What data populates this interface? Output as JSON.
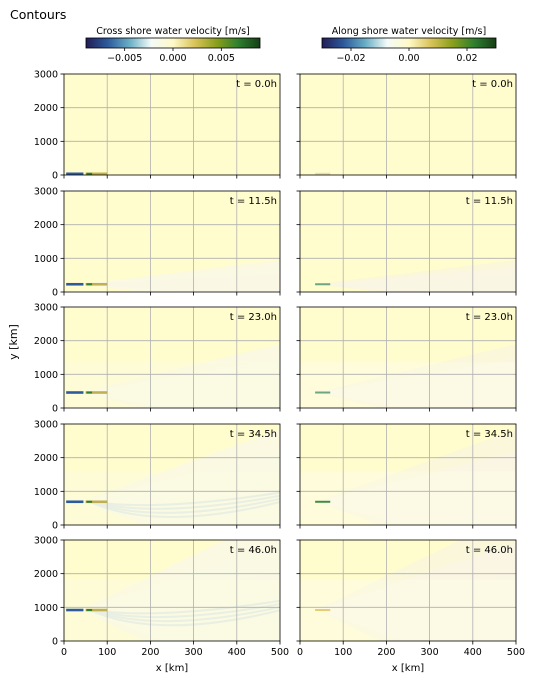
{
  "figure_title": "Contours",
  "chart_data": {
    "type": "heatmap",
    "grid": true,
    "xlim": [
      0,
      500
    ],
    "ylim": [
      0,
      3000
    ],
    "x_ticks": [
      0,
      100,
      200,
      300,
      400,
      500
    ],
    "y_ticks": [
      0,
      1000,
      2000,
      3000
    ],
    "xlabel": "x [km]",
    "ylabel": "y [km]",
    "colorbars": [
      {
        "label": "Cross shore water velocity [m/s]",
        "range": [
          -0.009,
          0.009
        ],
        "ticks": [
          -0.005,
          0.0,
          0.005
        ],
        "tick_labels": [
          "−0.005",
          "0.000",
          "0.005"
        ],
        "colors": [
          "#221d55",
          "#2d5a9c",
          "#6aaec6",
          "#f4fbf8",
          "#fff9c8",
          "#d9c35a",
          "#8a9f1c",
          "#2e7f2e",
          "#163d16"
        ]
      },
      {
        "label": "Along shore water velocity [m/s]",
        "range": [
          -0.03,
          0.03
        ],
        "ticks": [
          -0.02,
          0.0,
          0.02
        ],
        "tick_labels": [
          "−0.02",
          "0.00",
          "0.02"
        ],
        "colors": [
          "#221d55",
          "#2d5a9c",
          "#6aaec6",
          "#f4fbf8",
          "#fff9c8",
          "#d9c35a",
          "#8a9f1c",
          "#2e7f2e",
          "#163d16"
        ]
      }
    ],
    "times": [
      "t = 0.0h",
      "t = 11.5h",
      "t = 23.0h",
      "t = 34.5h",
      "t = 46.0h"
    ],
    "source_y_km": [
      0,
      230,
      460,
      690,
      920
    ],
    "background_color": "#fffccd"
  }
}
